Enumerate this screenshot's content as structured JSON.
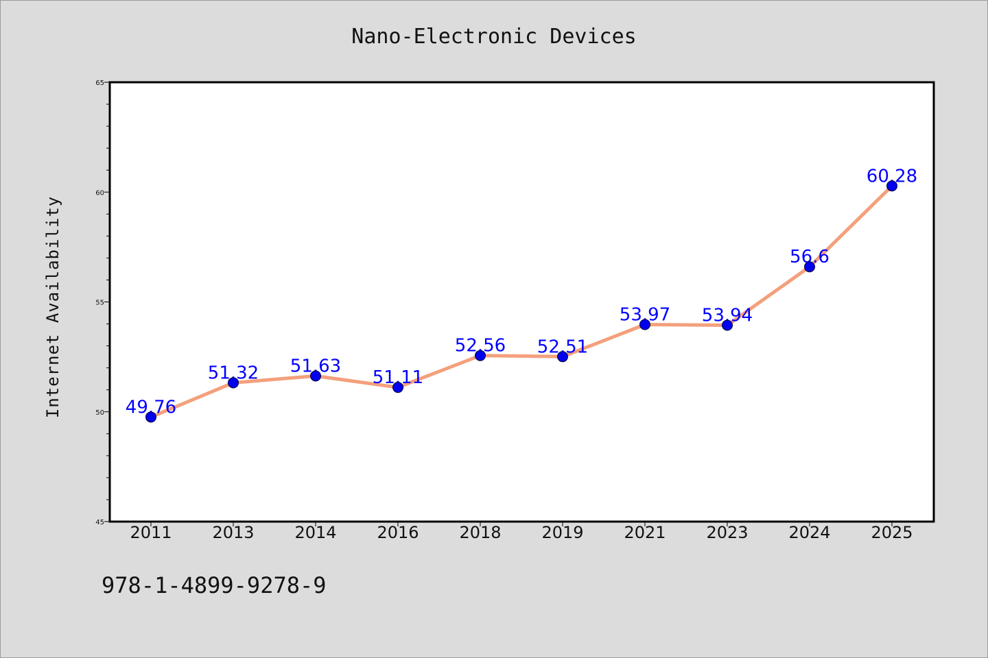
{
  "chart_data": {
    "type": "line",
    "title": "Nano-Electronic Devices",
    "xlabel": "",
    "ylabel": "Internet Availability",
    "categories": [
      "2011",
      "2013",
      "2014",
      "2016",
      "2018",
      "2019",
      "2021",
      "2023",
      "2024",
      "2025"
    ],
    "series": [
      {
        "values": [
          49.76,
          51.32,
          51.63,
          51.11,
          52.56,
          52.51,
          53.97,
          53.94,
          56.6,
          60.28
        ],
        "labels": [
          "49.76",
          "51.32",
          "51.63",
          "51.11",
          "52.56",
          "52.51",
          "53.97",
          "53.94",
          "56.6",
          "60.28"
        ],
        "line_color": "#f4a07c",
        "marker_color": "#0000ee"
      }
    ],
    "ylim": [
      45,
      65
    ],
    "yticks": [
      "45",
      "50",
      "55",
      "60",
      "65"
    ],
    "grid": false,
    "legend": "none"
  },
  "footer": {
    "isbn": "978-1-4899-9278-9"
  }
}
